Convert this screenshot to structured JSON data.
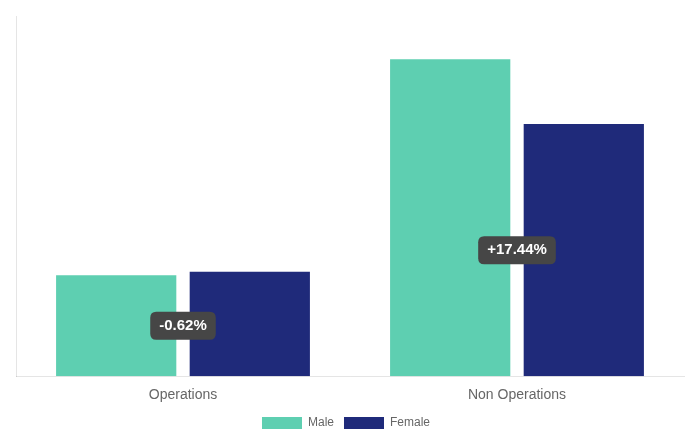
{
  "chart_data": {
    "type": "bar",
    "categories": [
      "Operations",
      "Non Operations"
    ],
    "series": [
      {
        "name": "Male",
        "color": "#5ecfb1",
        "values": [
          28,
          88
        ]
      },
      {
        "name": "Female",
        "color": "#1f2a7a",
        "values": [
          29,
          70
        ]
      }
    ],
    "annotations": [
      {
        "text": "-0.62%",
        "category": "Operations",
        "color": "#464646"
      },
      {
        "text": "+17.44%",
        "category": "Non Operations",
        "color": "#464646"
      }
    ],
    "ylim": [
      0,
      100
    ],
    "grid": false,
    "legend": "bottom",
    "tick_labels": "x"
  }
}
